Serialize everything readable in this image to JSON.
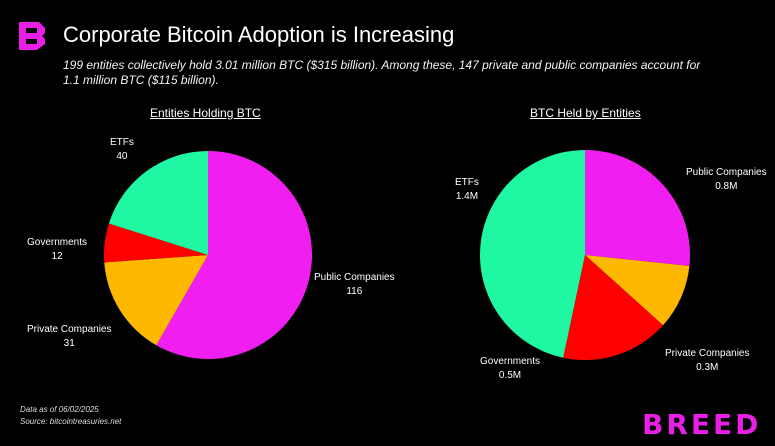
{
  "header": {
    "title": "Corporate Bitcoin Adoption is Increasing",
    "subtitle": "199 entities collectively hold 3.01 million BTC ($315 billion). Among these, 147 private and public companies account for 1.1 million BTC ($115 billion)."
  },
  "colors": {
    "public": "#f01ef0",
    "private": "#ffb800",
    "governments": "#ff0000",
    "etfs": "#1ff7a3",
    "brand": "#e91ee7"
  },
  "chart_data": [
    {
      "type": "pie",
      "title": "Entities Holding BTC",
      "slices": [
        {
          "name": "Public Companies",
          "value": 116,
          "value_label": "116",
          "color": "#f01ef0"
        },
        {
          "name": "Private Companies",
          "value": 31,
          "value_label": "31",
          "color": "#ffb800"
        },
        {
          "name": "Governments",
          "value": 12,
          "value_label": "12",
          "color": "#ff0000"
        },
        {
          "name": "ETFs",
          "value": 40,
          "value_label": "40",
          "color": "#1ff7a3"
        }
      ]
    },
    {
      "type": "pie",
      "title": "BTC Held by Entities",
      "slices": [
        {
          "name": "Public Companies",
          "value": 0.8,
          "value_label": "0.8M",
          "color": "#f01ef0"
        },
        {
          "name": "Private Companies",
          "value": 0.3,
          "value_label": "0.3M",
          "color": "#ffb800"
        },
        {
          "name": "Governments",
          "value": 0.5,
          "value_label": "0.5M",
          "color": "#ff0000"
        },
        {
          "name": "ETFs",
          "value": 1.4,
          "value_label": "1.4M",
          "color": "#1ff7a3"
        }
      ]
    }
  ],
  "footer": {
    "date": "Data as of 06/02/2025",
    "source": "Source: bitcointreasuries.net",
    "brand": "BREED"
  }
}
